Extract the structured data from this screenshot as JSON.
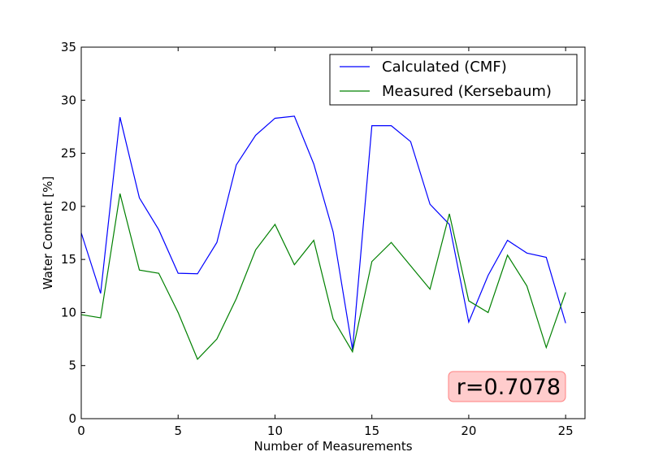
{
  "chart_data": {
    "type": "line",
    "xlabel": "Number of Measurements",
    "ylabel": "Water Content [%]",
    "xlim": [
      0,
      26
    ],
    "ylim": [
      0,
      35
    ],
    "xticks": [
      "0",
      "5",
      "10",
      "15",
      "20",
      "25"
    ],
    "yticks": [
      "0",
      "5",
      "10",
      "15",
      "20",
      "25",
      "30",
      "35"
    ],
    "legend_position": "top-right",
    "grid": false,
    "x": [
      0,
      1,
      2,
      3,
      4,
      5,
      6,
      7,
      8,
      9,
      10,
      11,
      12,
      13,
      14,
      15,
      16,
      17,
      18,
      19,
      20,
      21,
      22,
      23,
      24,
      25
    ],
    "series": [
      {
        "name": "Calculated (CMF)",
        "color": "#0000ff",
        "values": [
          17.5,
          11.8,
          28.4,
          20.8,
          17.8,
          13.7,
          13.65,
          16.6,
          23.9,
          26.7,
          28.3,
          28.5,
          24.0,
          17.6,
          6.5,
          27.6,
          27.6,
          26.1,
          20.2,
          18.3,
          9.1,
          13.5,
          16.8,
          15.6,
          15.2,
          9.0
        ]
      },
      {
        "name": "Measured (Kersebaum)",
        "color": "#008000",
        "values": [
          9.8,
          9.5,
          21.2,
          14.0,
          13.7,
          10.0,
          5.6,
          7.5,
          11.3,
          15.9,
          18.3,
          14.5,
          16.8,
          9.4,
          6.3,
          14.8,
          16.6,
          14.4,
          12.2,
          19.3,
          11.1,
          10.0,
          15.4,
          12.5,
          6.7,
          11.9
        ]
      }
    ],
    "annotation": {
      "text": "r=0.7078",
      "box_color": "#ffcccc",
      "border_color": "#ff8080",
      "data_x": 24.5,
      "data_y": 3.0
    }
  }
}
